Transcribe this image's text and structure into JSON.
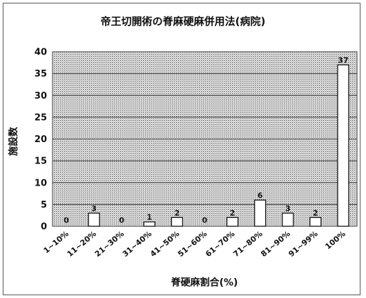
{
  "chart_data": {
    "type": "bar",
    "title": "帝王切開術の脊麻硬麻併用法(病院)",
    "xlabel": "脊硬麻割合(%)",
    "ylabel": "施設数",
    "categories": [
      "1~10%",
      "11~20%",
      "21~30%",
      "31~40%",
      "41~50%",
      "51~60%",
      "61~70%",
      "71~80%",
      "81~90%",
      "91~99%",
      "100%"
    ],
    "values": [
      0,
      3,
      0,
      1,
      2,
      0,
      2,
      6,
      3,
      2,
      37
    ],
    "ylim": [
      0,
      40
    ],
    "yticks": [
      0,
      5,
      10,
      15,
      20,
      25,
      30,
      35,
      40
    ],
    "grid": true,
    "legend": "none",
    "plot_fill": "dotted-gray",
    "bar_color": "#ffffff",
    "gridline_color": "#333333"
  }
}
